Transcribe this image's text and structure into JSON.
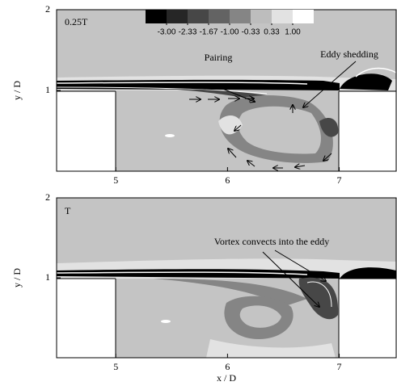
{
  "chart_data": [
    {
      "type": "contour",
      "annotations": [
        "0.25T",
        "Pairing",
        "Eddy shedding"
      ],
      "ylabel": "y / D",
      "xlim": [
        4.47,
        7.51
      ],
      "ylim": [
        0,
        2
      ],
      "xticks": [
        5,
        6,
        7
      ],
      "yticks": [
        1,
        2
      ],
      "colorbar": {
        "colors": [
          "#000000",
          "#262626",
          "#474747",
          "#636363",
          "#858585",
          "#bdbdbd",
          "#e2e2e2",
          "#ffffff"
        ],
        "ticks": [
          {
            "value": -3,
            "label": "-3.00"
          },
          {
            "value": -2.33,
            "label": "-2.33"
          },
          {
            "value": -1.67,
            "label": "-1.67"
          },
          {
            "value": -1,
            "label": "-1.00"
          },
          {
            "value": -0.33,
            "label": "-0.33"
          },
          {
            "value": 0.33,
            "label": "0.33"
          },
          {
            "value": 1,
            "label": "1.00"
          }
        ]
      }
    },
    {
      "type": "contour",
      "annotations": [
        "T",
        "Vortex convects into the eddy"
      ],
      "xlabel": "x / D",
      "ylabel": "y / D",
      "xlim": [
        4.47,
        7.51
      ],
      "ylim": [
        0,
        2
      ],
      "xticks": [
        5,
        6,
        7
      ],
      "yticks": [
        1,
        2
      ]
    }
  ]
}
